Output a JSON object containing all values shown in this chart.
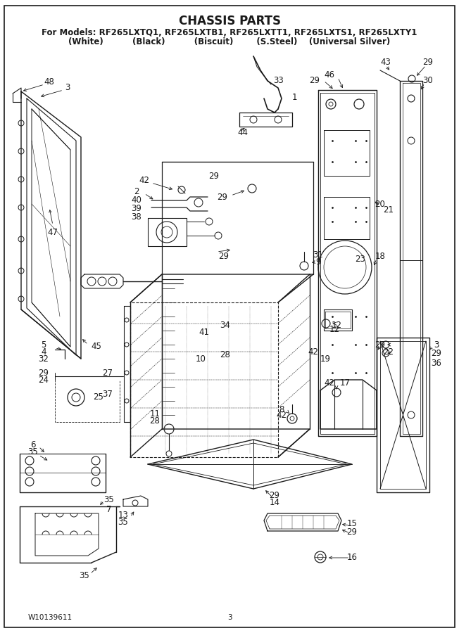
{
  "title": "CHASSIS PARTS",
  "subtitle1": "For Models: RF265LXTQ1, RF265LXTB1, RF265LXTT1, RF265LXTS1, RF265LXTY1",
  "subtitle2": "(White)          (Black)          (Biscuit)        (S.Steel)    (Universal Silver)",
  "footer_left": "W10139611",
  "footer_center": "3",
  "bg_color": "#ffffff",
  "lc": "#1a1a1a",
  "title_fontsize": 12,
  "sub1_fontsize": 8.5,
  "sub2_fontsize": 8.5,
  "lbl_fontsize": 8.5
}
